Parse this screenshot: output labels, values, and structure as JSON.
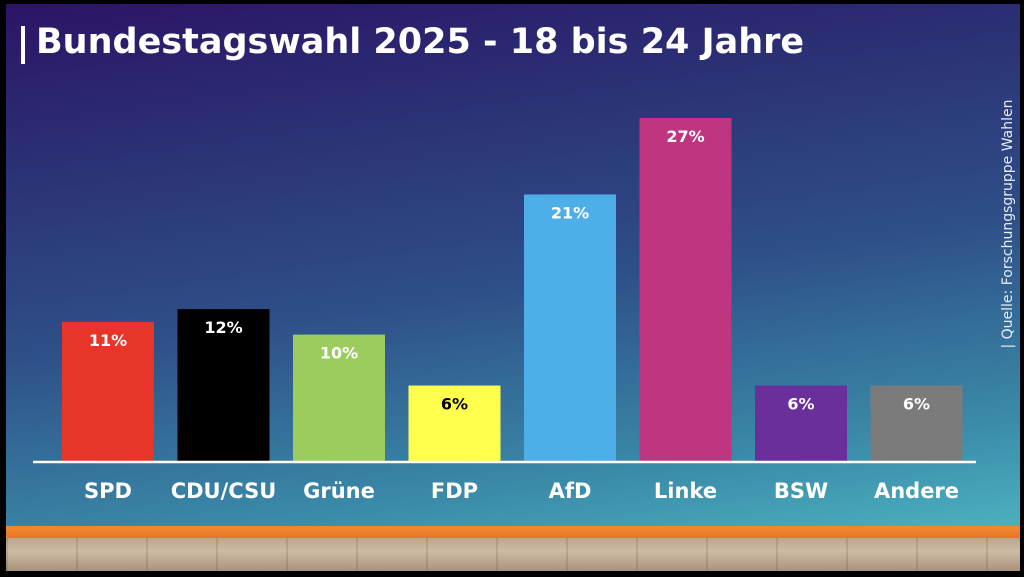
{
  "title": "Bundestagswahl 2025 - 18 bis 24 Jahre",
  "source": "| Quelle: Forschungsgruppe Wahlen",
  "chart_data": {
    "type": "bar",
    "title": "Bundestagswahl 2025 - 18 bis 24 Jahre",
    "categories": [
      "SPD",
      "CDU/CSU",
      "Grüne",
      "FDP",
      "AfD",
      "Linke",
      "BSW",
      "Andere"
    ],
    "values": [
      11,
      12,
      10,
      6,
      21,
      27,
      6,
      6
    ],
    "value_labels": [
      "11%",
      "12%",
      "10%",
      "6%",
      "21%",
      "27%",
      "6%",
      "6%"
    ],
    "unit": "%",
    "colors": [
      "#e8352a",
      "#000000",
      "#9ccb5e",
      "#ffff4d",
      "#4eaee8",
      "#c0357f",
      "#6a2f9a",
      "#7b7b7b"
    ],
    "label_colors": [
      "#ffffff",
      "#ffffff",
      "#ffffff",
      "#000000",
      "#ffffff",
      "#ffffff",
      "#ffffff",
      "#ffffff"
    ],
    "ylim": [
      0,
      27
    ],
    "grid": false,
    "legend": "none"
  }
}
